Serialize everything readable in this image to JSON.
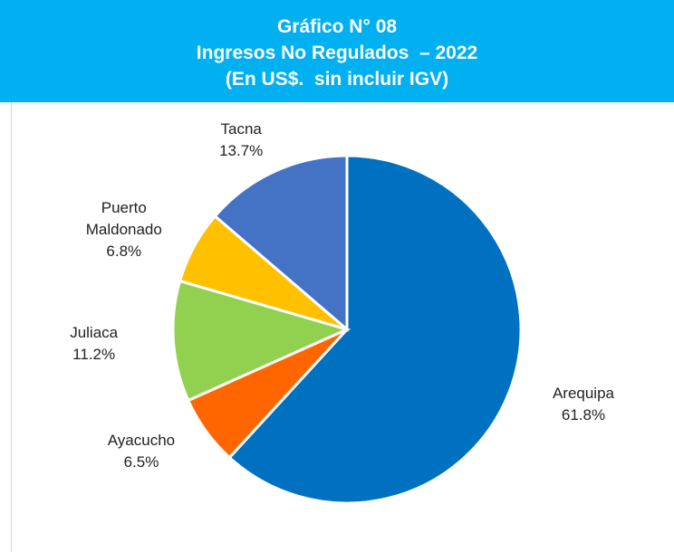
{
  "chart_data": {
    "type": "pie",
    "title": "Gráfico N° 08",
    "subtitle": [
      "Ingresos No Regulados  – 2022",
      "(En US$.  sin incluir IGV)"
    ],
    "categories": [
      "Arequipa",
      "Ayacucho",
      "Juliaca",
      "Puerto Maldonado",
      "Tacna"
    ],
    "values": [
      61.8,
      6.5,
      11.2,
      6.8,
      13.7
    ],
    "value_labels": [
      "61.8%",
      "6.5%",
      "11.2%",
      "6.8%",
      "13.7%"
    ],
    "colors": [
      "#0070c0",
      "#ff6600",
      "#92d050",
      "#ffc000",
      "#4472c4"
    ]
  }
}
